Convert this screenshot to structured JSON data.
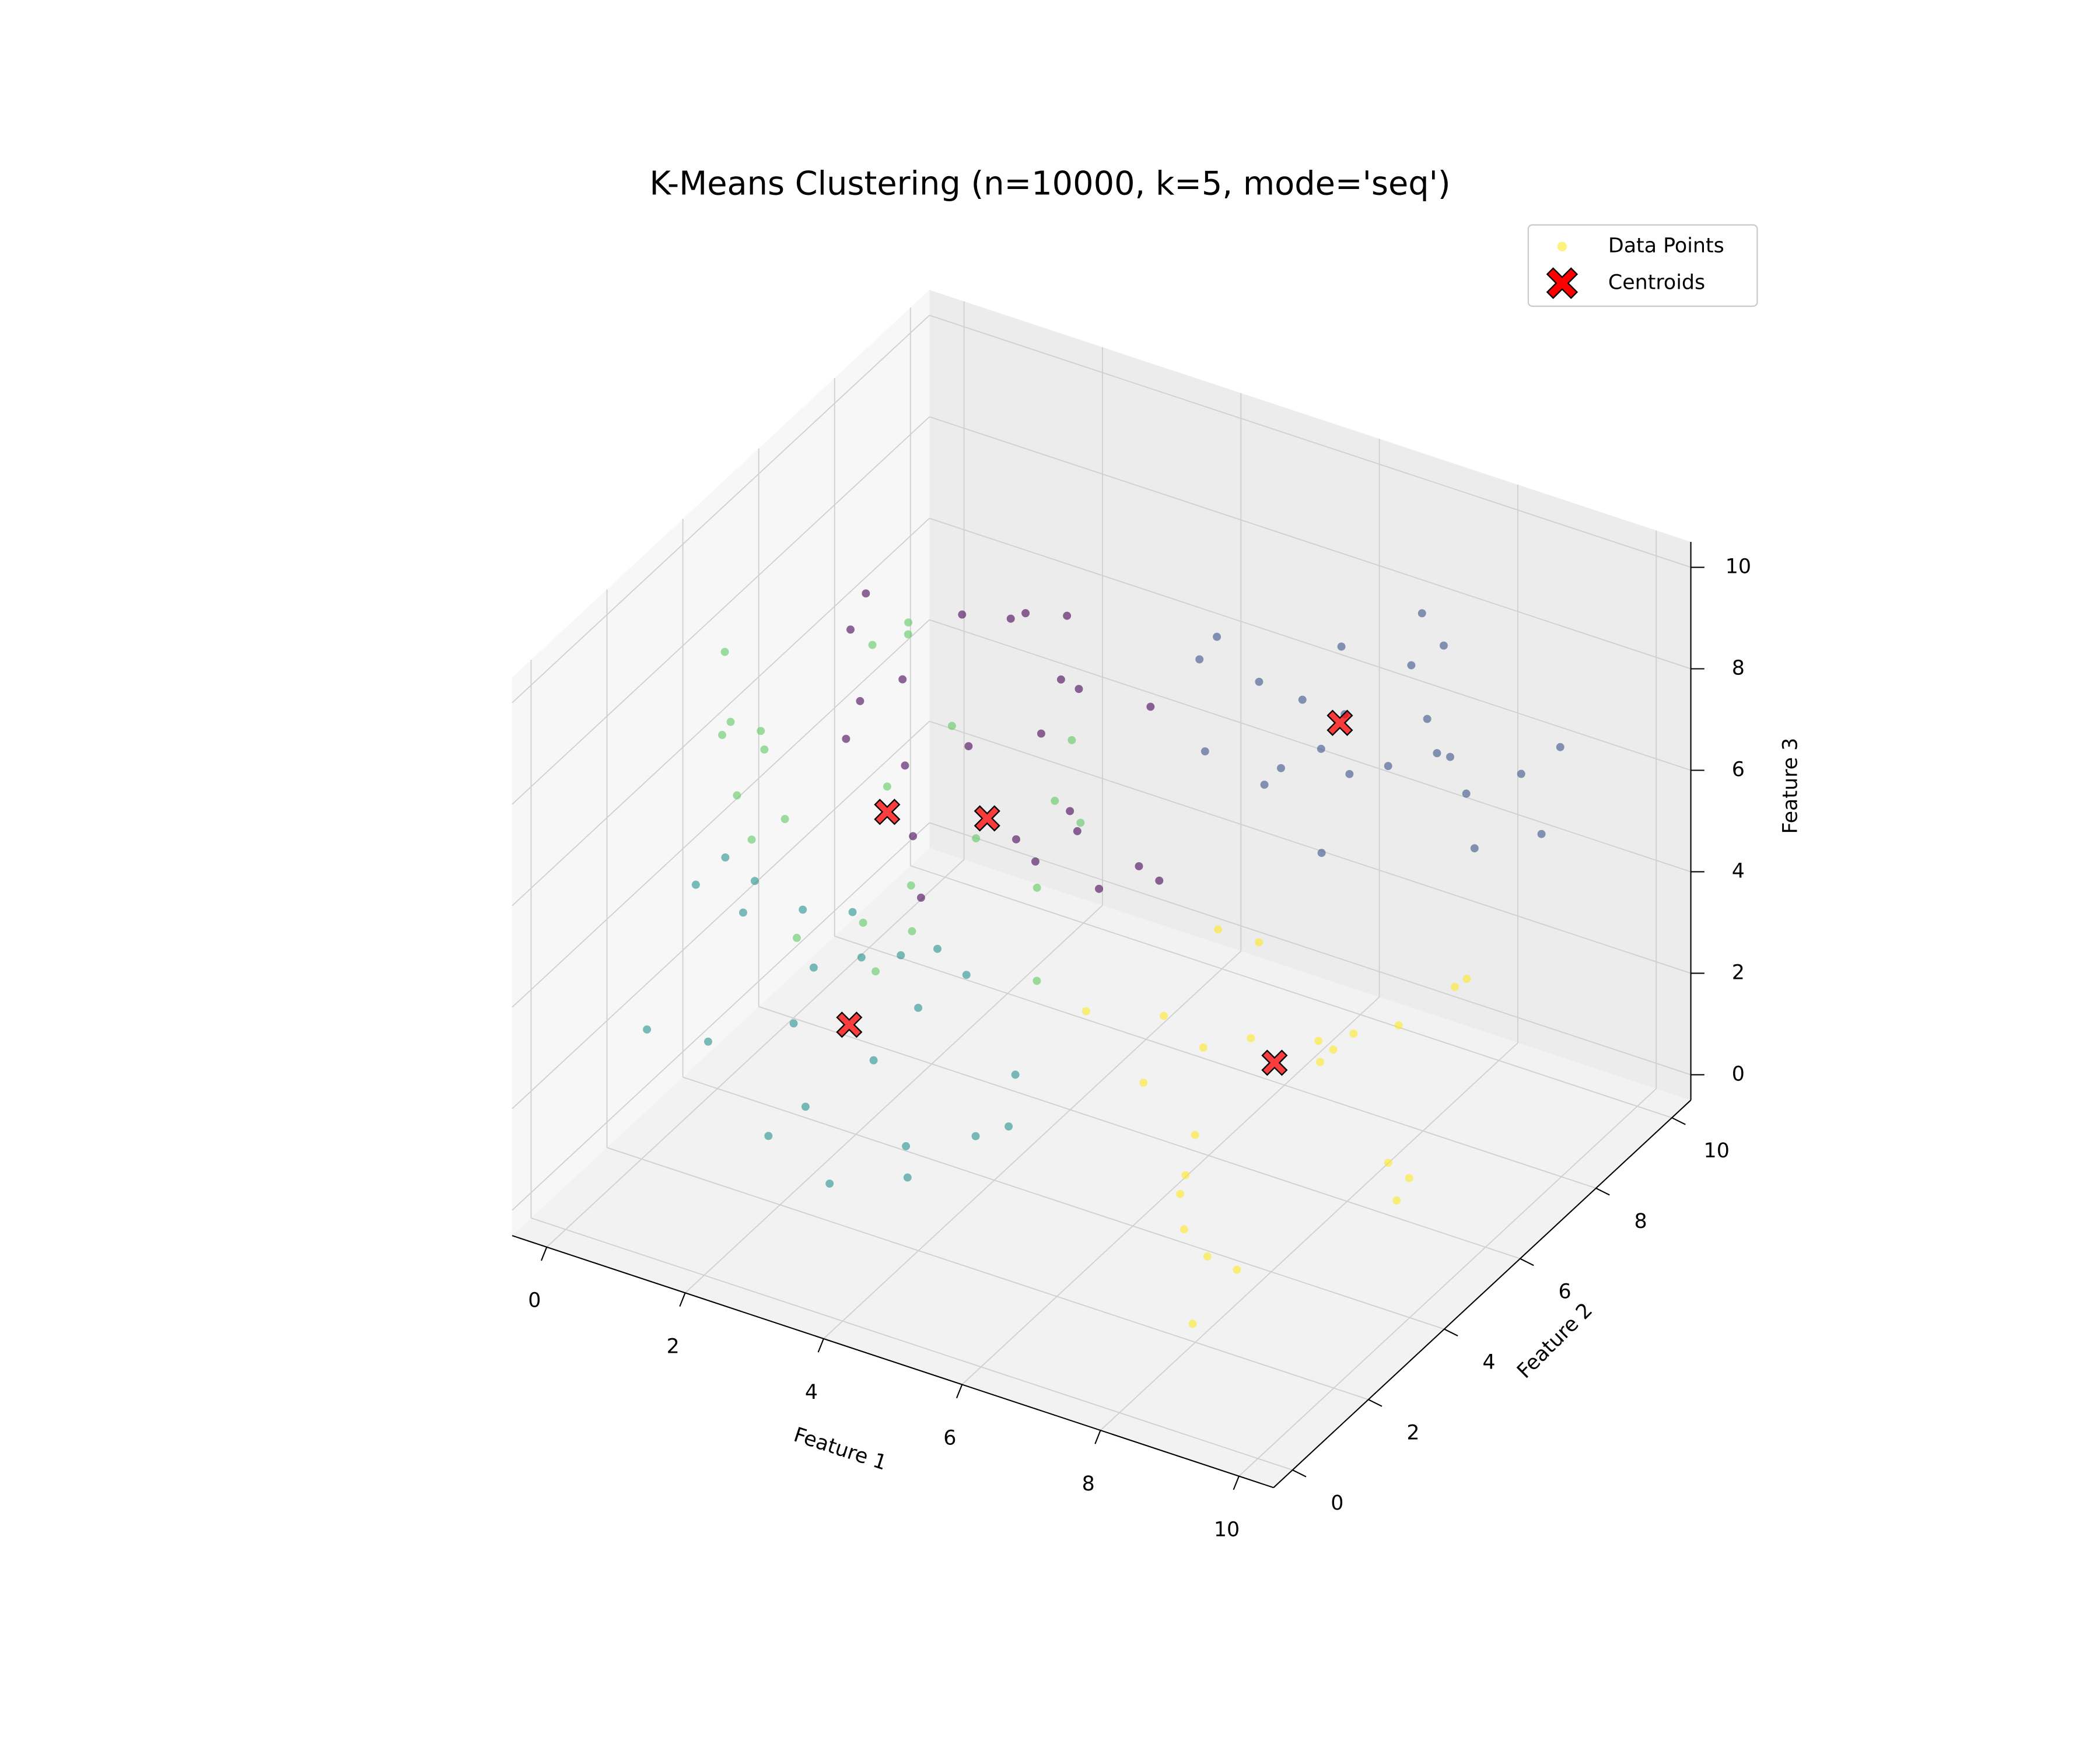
{
  "chart_data": {
    "type": "scatter3d",
    "title": "K-Means Clustering (n=10000, k=5, mode='seq')",
    "x_label": "Feature 1",
    "y_label": "Feature 2",
    "z_label": "Feature 3",
    "xlim": [
      -0.5,
      10.5
    ],
    "ylim": [
      -0.5,
      10.5
    ],
    "zlim": [
      -0.5,
      10.5
    ],
    "xticks": [
      0,
      2,
      4,
      6,
      8,
      10
    ],
    "yticks": [
      0,
      2,
      4,
      6,
      8,
      10
    ],
    "zticks": [
      0,
      2,
      4,
      6,
      8,
      10
    ],
    "grid": true,
    "legend": "upper right",
    "series": [
      {
        "name": "Data Points",
        "color": "#fde725",
        "groups": [
          {
            "color": "#440154",
            "x": [
              1.2,
              3.5,
              2.0,
              4.1,
              2.9,
              0.8,
              3.8,
              1.6,
              2.4,
              4.5,
              3.1,
              1.9,
              2.7,
              0.5,
              3.3,
              4.8,
              2.2,
              1.4,
              3.9,
              2.6,
              4.3,
              1.1,
              3.0,
              2.1
            ],
            "y": [
              5.2,
              7.1,
              6.8,
              4.9,
              8.0,
              6.3,
              5.6,
              7.7,
              4.5,
              6.9,
              7.4,
              5.9,
              8.6,
              7.0,
              6.1,
              5.3,
              9.2,
              6.6,
              8.3,
              4.2,
              7.8,
              5.5,
              6.4,
              7.9
            ],
            "z": [
              6.1,
              4.0,
              7.8,
              5.2,
              3.5,
              5.9,
              7.1,
              4.4,
              8.3,
              3.9,
              6.6,
              2.8,
              5.4,
              7.4,
              8.9,
              4.7,
              6.2,
              3.3,
              5.8,
              6.9,
              2.9,
              8.0,
              4.1,
              7.0
            ]
          },
          {
            "color": "#3b528b",
            "x": [
              5.1,
              7.9,
              6.4,
              8.8,
              6.0,
              7.3,
              9.2,
              5.6,
              7.0,
              8.1,
              6.7,
              9.6,
              5.9,
              7.6,
              8.5,
              6.2,
              7.1,
              9.0,
              5.4,
              8.3,
              6.9,
              7.8,
              6.5,
              8.9
            ],
            "y": [
              7.4,
              8.9,
              6.6,
              7.9,
              9.5,
              6.1,
              8.4,
              8.2,
              9.8,
              6.9,
              7.7,
              8.7,
              6.4,
              9.1,
              7.2,
              8.6,
              5.9,
              9.3,
              7.0,
              8.0,
              9.7,
              6.3,
              8.8,
              7.5
            ],
            "z": [
              7.9,
              6.2,
              8.6,
              5.5,
              7.1,
              9.0,
              6.8,
              5.1,
              8.0,
              7.5,
              4.6,
              7.3,
              9.4,
              6.0,
              8.4,
              5.8,
              7.7,
              4.9,
              6.5,
              9.2,
              7.0,
              8.8,
              5.3,
              6.9
            ]
          },
          {
            "color": "#21918c",
            "x": [
              1.4,
              4.2,
              2.6,
              3.8,
              0.7,
              5.1,
              2.0,
              3.3,
              4.7,
              1.1,
              2.9,
              3.9,
              0.4,
              4.5,
              2.3,
              3.6,
              1.8,
              5.4,
              2.8,
              1.5,
              4.0,
              3.1,
              0.9,
              2.5
            ],
            "y": [
              1.2,
              2.9,
              0.6,
              1.9,
              3.4,
              1.5,
              2.6,
              0.3,
              3.1,
              2.2,
              4.0,
              1.0,
              2.7,
              0.8,
              3.6,
              2.4,
              1.7,
              2.0,
              0.9,
              3.8,
              2.5,
              1.3,
              0.5,
              3.0
            ],
            "z": [
              3.0,
              4.4,
              2.1,
              5.3,
              3.7,
              2.6,
              4.9,
              3.2,
              1.5,
              5.8,
              2.4,
              3.9,
              4.6,
              2.0,
              3.4,
              1.1,
              6.0,
              3.6,
              4.2,
              2.7,
              5.1,
              0.9,
              3.5,
              4.8
            ]
          },
          {
            "color": "#5ec962",
            "x": [
              1.0,
              3.9,
              2.4,
              4.6,
              0.6,
              3.2,
              5.3,
              1.8,
              2.9,
              4.1,
              0.9,
              3.6,
              2.1,
              5.0,
              1.5,
              4.4,
              2.7,
              3.4,
              0.3,
              4.9,
              1.7,
              3.0,
              2.2,
              5.6
            ],
            "y": [
              2.3,
              3.7,
              1.4,
              4.5,
              3.1,
              2.0,
              3.9,
              4.8,
              0.8,
              2.7,
              3.5,
              1.6,
              5.2,
              3.3,
              2.5,
              1.1,
              4.1,
              2.9,
              3.8,
              4.4,
              1.8,
              3.0,
              0.5,
              2.2
            ],
            "z": [
              8.1,
              6.4,
              7.7,
              6.9,
              9.0,
              5.6,
              7.2,
              8.5,
              6.0,
              9.4,
              7.3,
              5.1,
              8.8,
              6.2,
              7.9,
              6.6,
              9.6,
              5.8,
              7.0,
              8.3,
              6.7,
              7.5,
              8.7,
              5.4
            ]
          },
          {
            "color": "#fde725",
            "x": [
              6.1,
              8.8,
              7.2,
              9.4,
              5.9,
              7.9,
              8.3,
              6.5,
              9.8,
              7.0,
              8.6,
              6.8,
              9.1,
              7.6,
              5.6,
              8.0,
              9.5,
              6.3,
              7.4,
              8.9,
              6.9,
              9.2,
              7.8,
              8.4
            ],
            "y": [
              4.1,
              5.9,
              3.2,
              6.6,
              5.0,
              2.5,
              4.7,
              6.2,
              3.8,
              5.5,
              2.0,
              4.4,
              5.3,
              6.9,
              3.5,
              1.6,
              4.9,
              5.7,
              2.8,
              7.2,
              4.0,
              3.1,
              6.0,
              1.2
            ],
            "z": [
              2.3,
              3.4,
              1.6,
              4.1,
              2.9,
              0.8,
              3.7,
              1.9,
              2.6,
              4.5,
              1.2,
              3.1,
              0.5,
              2.0,
              3.9,
              2.7,
              1.4,
              4.3,
              0.9,
              3.3,
              1.7,
              4.8,
              2.4,
              0.6
            ]
          }
        ]
      },
      {
        "name": "Centroids",
        "color": "#ff0000",
        "x": [
          2.8,
          6.8,
          3.0,
          3.0,
          7.5
        ],
        "y": [
          6.0,
          8.0,
          2.0,
          3.0,
          5.0
        ],
        "z": [
          4.7,
          7.0,
          3.5,
          7.0,
          2.7
        ]
      }
    ]
  }
}
